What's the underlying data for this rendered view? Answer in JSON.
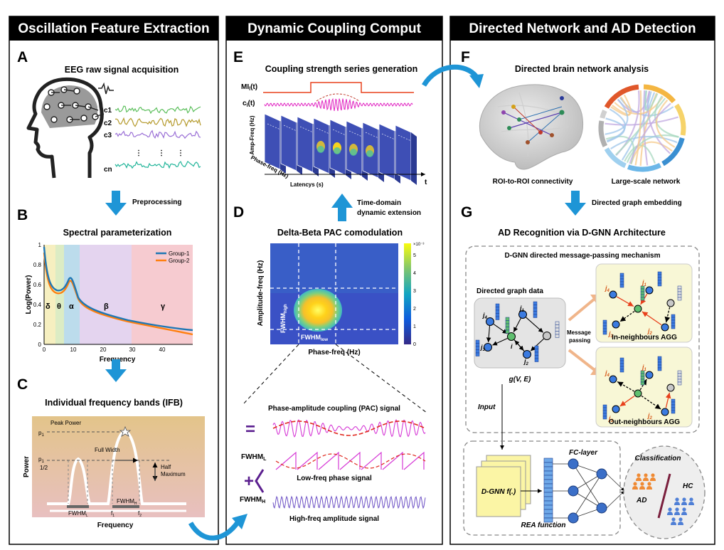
{
  "columns": [
    {
      "title": "Oscillation Feature Extraction"
    },
    {
      "title": "Dynamic Coupling Comput"
    },
    {
      "title": "Directed Network and AD Detection"
    }
  ],
  "panelA": {
    "letter": "A",
    "title": "EEG raw signal acquisition",
    "channels": [
      "c1",
      "c2",
      "c3",
      "cn"
    ],
    "dots": "⋮",
    "arrow_label": "Preprocessing"
  },
  "panelB": {
    "letter": "B",
    "title": "Spectral parameterization",
    "ylabel": "Log(Power)",
    "xlabel": "Frequency",
    "yticks": [
      "0",
      "0.2",
      "0.4",
      "0.6",
      "0.8",
      "1"
    ],
    "xticks": [
      "0",
      "10",
      "20",
      "30",
      "40"
    ],
    "bands": [
      "δ",
      "θ",
      "α",
      "β",
      "γ"
    ],
    "legend": [
      "Group-1",
      "Group-2"
    ],
    "colors": {
      "group1": "#1f77b4",
      "group2": "#ff7f0e"
    }
  },
  "panelC": {
    "letter": "C",
    "title": "Individual frequency bands  (IFB)",
    "peak_power": "Peak Power",
    "p1": "p",
    "p1_sub": "1",
    "p1_half": "p",
    "p1_half_sub": "1",
    "half_frac": "1/2",
    "full_width": "Full Width",
    "half_max1": "Half",
    "half_max2": "Maximum",
    "fwhm": "FWHM",
    "fwhm_l_sub": "L",
    "fwhm_h_sub": "H",
    "f1": "f",
    "f1_sub": "1",
    "f2": "f",
    "f2_sub": "2",
    "ylabel": "Power",
    "xlabel": "Frequency"
  },
  "panelE": {
    "letter": "E",
    "title": "Coupling strength series generation",
    "mi": "MI",
    "mi_sub": "l",
    "mi_arg": "(t)",
    "cl": "c",
    "cl_sub": "l",
    "cl_arg": "(t)",
    "amp_axis": "Amp-Freq (Hz)",
    "phase_axis": "Phase-freq (Hz)",
    "latency": "Latencys (s)",
    "t": "t",
    "arrow_label1": "Time-domain",
    "arrow_label2": "dynamic extension"
  },
  "panelD": {
    "letter": "D",
    "title": "Delta-Beta PAC comodulation",
    "ylabel": "Amplitude-freq (Hz)",
    "xlabel": "Phase-freq (Hz)",
    "fwhm_high": "FWHM",
    "fwhm_high_sub": "high",
    "fwhm_low": "FWHM",
    "fwhm_low_sub": "low",
    "colorbar_exp": "×10⁻³",
    "colorbar_ticks": [
      "0",
      "1",
      "2",
      "3",
      "4",
      "5"
    ]
  },
  "pac": {
    "title": "Phase-amplitude coupling (PAC) signal",
    "equals": "=",
    "plus": "+",
    "fwhm_l": "FWHM",
    "fwhm_l_sub": "L",
    "fwhm_h": "FWHM",
    "fwhm_h_sub": "H",
    "low_label": "Low-freq phase signal",
    "high_label": "High-freq  amplitude signal"
  },
  "panelF": {
    "letter": "F",
    "title": "Directed brain network analysis",
    "cap1": "ROI-to-ROI connectivity",
    "cap2": "Large-scale network",
    "arrow_label": "Directed graph embedding"
  },
  "panelG": {
    "letter": "G",
    "title": "AD Recognition via D-GNN Architecture",
    "box_title": "D-GNN directed message-passing mechanism",
    "graph_data": "Directed graph data",
    "gve": "g(V, E)",
    "message1": "Message",
    "message2": "passing",
    "in_agg": "In-neighbours AGG",
    "out_agg": "Out-neighbours AGG",
    "j1": "j",
    "j1_sub": "1",
    "j2": "j",
    "j2_sub": "2",
    "j3": "j",
    "j3_sub": "3",
    "j4": "j",
    "j4_sub": "4",
    "i": "i",
    "input": "Input",
    "dgnn": "D-GNN f(.)",
    "fc": "FC-layer",
    "rea": "REA function",
    "classification": "Classification",
    "hc": "HC",
    "ad": "AD"
  }
}
